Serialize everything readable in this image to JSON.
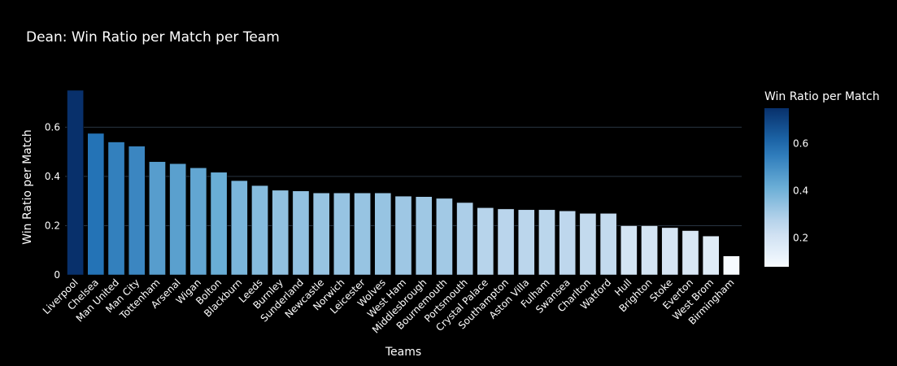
{
  "chart_data": {
    "type": "bar",
    "title": "Dean: Win Ratio per Match per Team",
    "xlabel": "Teams",
    "ylabel": "Win Ratio per Match",
    "categories": [
      "Liverpool",
      "Chelsea",
      "Man United",
      "Man City",
      "Tottenham",
      "Arsenal",
      "Wigan",
      "Bolton",
      "Blackburn",
      "Leeds",
      "Burnley",
      "Sunderland",
      "Newcastle",
      "Norwich",
      "Leicester",
      "Wolves",
      "West Ham",
      "Middlesbrough",
      "Bournemouth",
      "Portsmouth",
      "Crystal Palace",
      "Southampton",
      "Aston Villa",
      "Fulham",
      "Swansea",
      "Charlton",
      "Watford",
      "Hull",
      "Brighton",
      "Stoke",
      "Everton",
      "West Brom",
      "Birmingham"
    ],
    "values": [
      0.75,
      0.575,
      0.54,
      0.523,
      0.46,
      0.452,
      0.435,
      0.417,
      0.383,
      0.363,
      0.344,
      0.341,
      0.333,
      0.333,
      0.333,
      0.333,
      0.32,
      0.318,
      0.311,
      0.294,
      0.273,
      0.268,
      0.265,
      0.265,
      0.26,
      0.25,
      0.25,
      0.2,
      0.2,
      0.192,
      0.18,
      0.158,
      0.077
    ],
    "ylim": [
      0,
      0.75
    ],
    "yticks": [
      0,
      0.2,
      0.4,
      0.6
    ],
    "grid": true,
    "colorscale": [
      "#f7fbff",
      "#c6dbef",
      "#6baed6",
      "#2171b5",
      "#08306b"
    ],
    "colorbar": {
      "title": "Win Ratio per Match",
      "range": [
        0.077,
        0.75
      ],
      "ticks": [
        0.2,
        0.4,
        0.6
      ]
    },
    "background": "#000000",
    "gridcolor": "#283442"
  }
}
